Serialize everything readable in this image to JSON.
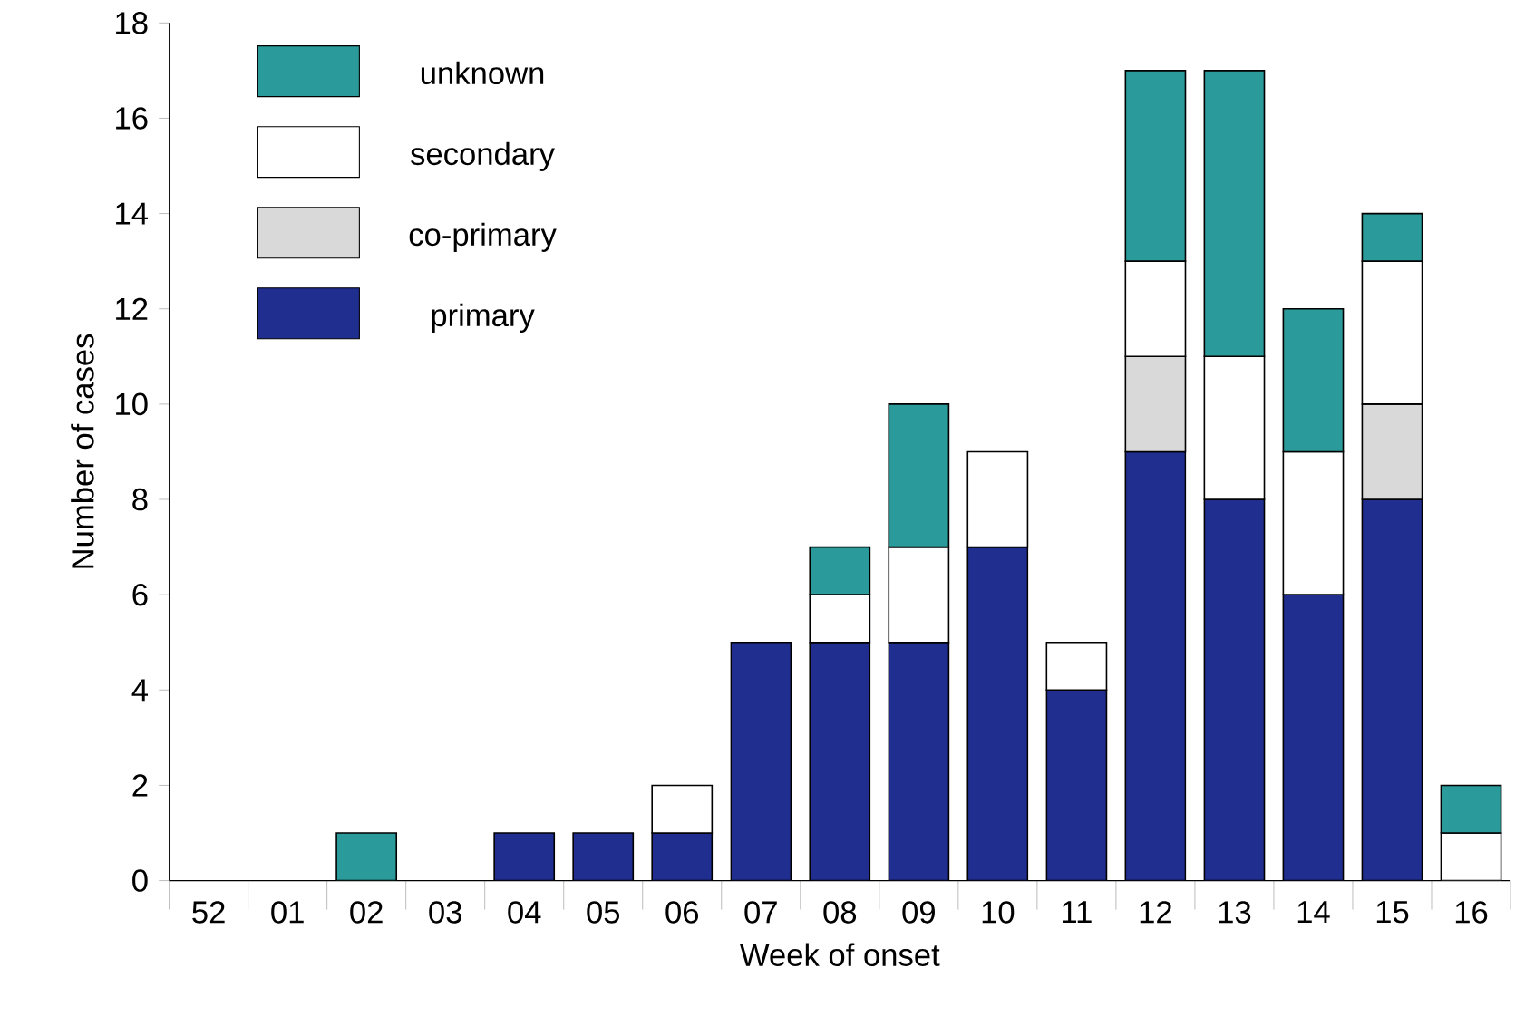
{
  "chart_data": {
    "type": "bar",
    "stacked": true,
    "xlabel": "Week of onset",
    "ylabel": "Number of cases",
    "categories": [
      "52",
      "01",
      "02",
      "03",
      "04",
      "05",
      "06",
      "07",
      "08",
      "09",
      "10",
      "11",
      "12",
      "13",
      "14",
      "15",
      "16"
    ],
    "series": [
      {
        "name": "primary",
        "color": "#1f2e8f",
        "values": [
          0,
          0,
          0,
          0,
          1,
          1,
          1,
          5,
          5,
          5,
          7,
          4,
          9,
          8,
          6,
          8,
          0
        ]
      },
      {
        "name": "co-primary",
        "color": "#d9d9d9",
        "values": [
          0,
          0,
          0,
          0,
          0,
          0,
          0,
          0,
          0,
          0,
          0,
          0,
          2,
          0,
          0,
          2,
          0
        ]
      },
      {
        "name": "secondary",
        "color": "#ffffff",
        "values": [
          0,
          0,
          0,
          0,
          0,
          0,
          1,
          0,
          1,
          2,
          2,
          1,
          2,
          3,
          3,
          3,
          1
        ]
      },
      {
        "name": "unknown",
        "color": "#2a9a9a",
        "values": [
          0,
          0,
          1,
          0,
          0,
          0,
          0,
          0,
          1,
          3,
          0,
          0,
          4,
          6,
          3,
          1,
          1
        ]
      }
    ],
    "ylim": [
      0,
      18
    ],
    "yticks": [
      0,
      2,
      4,
      6,
      8,
      10,
      12,
      14,
      16,
      18
    ],
    "legend": "top left",
    "grid": false
  }
}
